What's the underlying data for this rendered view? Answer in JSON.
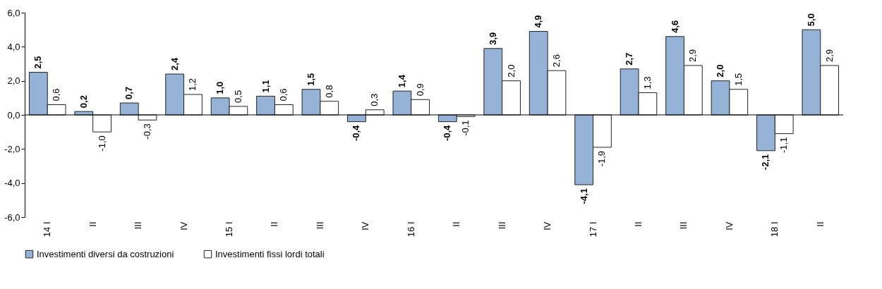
{
  "chart_data": {
    "type": "bar",
    "categories": [
      "14 I",
      "II",
      "III",
      "IV",
      "15 I",
      "II",
      "III",
      "IV",
      "16 I",
      "II",
      "III",
      "IV",
      "17 I",
      "II",
      "III",
      "IV",
      "18 I",
      "II"
    ],
    "series": [
      {
        "name": "Investimenti diversi da costruzioni",
        "color": "#95b3d7",
        "values": [
          2.5,
          0.2,
          0.7,
          2.4,
          1.0,
          1.1,
          1.5,
          -0.4,
          1.4,
          -0.4,
          3.9,
          4.9,
          -4.1,
          2.7,
          4.6,
          2.0,
          -2.1,
          5.0
        ],
        "value_labels": [
          "2,5",
          "0,2",
          "0,7",
          "2,4",
          "1,0",
          "1,1",
          "1,5",
          "-0,4",
          "1,4",
          "-0,4",
          "3,9",
          "4,9",
          "-4,1",
          "2,7",
          "4,6",
          "2,0",
          "-2,1",
          "5,0"
        ]
      },
      {
        "name": "Investimenti fissi lordi totali",
        "color": "#ffffff",
        "values": [
          0.6,
          -1.0,
          -0.3,
          1.2,
          0.5,
          0.6,
          0.8,
          0.3,
          0.9,
          -0.1,
          2.0,
          2.6,
          -1.9,
          1.3,
          2.9,
          1.5,
          -1.1,
          2.9
        ],
        "value_labels": [
          "0,6",
          "-1,0",
          "-0,3",
          "1,2",
          "0,5",
          "0,6",
          "0,8",
          "0,3",
          "0,9",
          "-0,1",
          "2,0",
          "2,6",
          "-1,9",
          "1,3",
          "2,9",
          "1,5",
          "-1,1",
          "2,9"
        ]
      }
    ],
    "ylim": [
      -6,
      6
    ],
    "yticks": [
      {
        "value": -6,
        "label": "-6,0"
      },
      {
        "value": -4,
        "label": "-4,0"
      },
      {
        "value": -2,
        "label": "-2,0"
      },
      {
        "value": 0,
        "label": "0,0"
      },
      {
        "value": 2,
        "label": "2,0"
      },
      {
        "value": 4,
        "label": "4,0"
      },
      {
        "value": 6,
        "label": "6,0"
      }
    ],
    "legend": "bottom"
  }
}
